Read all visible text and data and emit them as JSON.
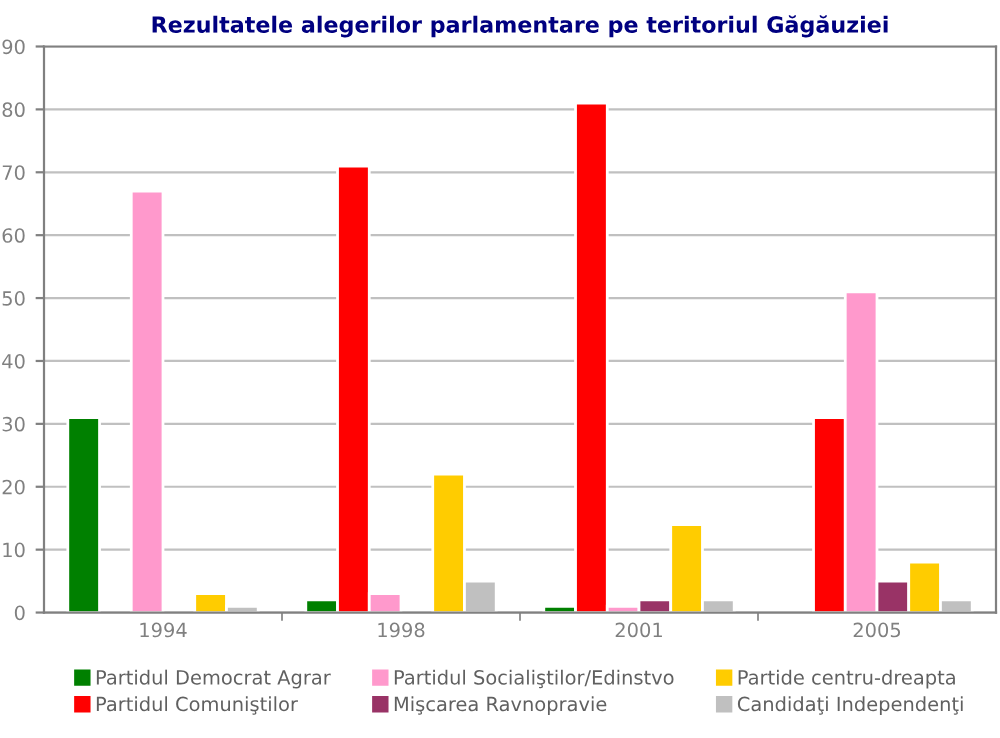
{
  "chart_data": {
    "type": "bar",
    "title": "Rezultatele alegerilor parlamentare pe teritoriul Găgăuziei",
    "categories": [
      "1994",
      "1998",
      "2001",
      "2005"
    ],
    "series": [
      {
        "name": "Partidul Democrat Agrar",
        "color": "#008000",
        "values": [
          31,
          2,
          1,
          null
        ]
      },
      {
        "name": "Partidul Comuniştilor",
        "color": "#ff0000",
        "values": [
          null,
          71,
          81,
          31
        ]
      },
      {
        "name": "Partidul Socialiştilor/Edinstvo",
        "color": "#ff99cc",
        "values": [
          67,
          3,
          1,
          51
        ]
      },
      {
        "name": "Mişcarea Ravnopravie",
        "color": "#993366",
        "values": [
          null,
          null,
          2,
          5
        ]
      },
      {
        "name": "Partide centru-dreapta",
        "color": "#ffcc00",
        "values": [
          3,
          22,
          14,
          8
        ]
      },
      {
        "name": "Candidaţi Independenţi",
        "color": "#c0c0c0",
        "values": [
          1,
          5,
          2,
          2
        ]
      }
    ],
    "ylim": [
      0,
      90
    ],
    "yticks": [
      0,
      10,
      20,
      30,
      40,
      50,
      60,
      70,
      80,
      90
    ],
    "grid": "y",
    "legend": "bottom"
  }
}
